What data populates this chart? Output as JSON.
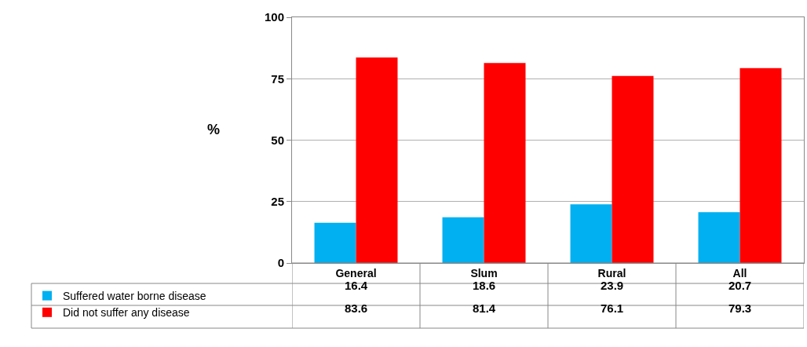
{
  "chart_data": {
    "type": "bar",
    "ylabel": "%",
    "categories": [
      "General",
      "Slum",
      "Rural",
      "All"
    ],
    "series": [
      {
        "name": "Suffered water borne disease",
        "color": "#00b0f0",
        "values": [
          16.4,
          18.6,
          23.9,
          20.7
        ]
      },
      {
        "name": "Did not suffer any disease",
        "color": "#ff0000",
        "values": [
          83.6,
          81.4,
          76.1,
          79.3
        ]
      }
    ],
    "ylim": [
      0,
      100
    ],
    "yticks": [
      0,
      25,
      50,
      75,
      100
    ],
    "grid": "y",
    "legend": "bottom left",
    "data_labels": true
  }
}
